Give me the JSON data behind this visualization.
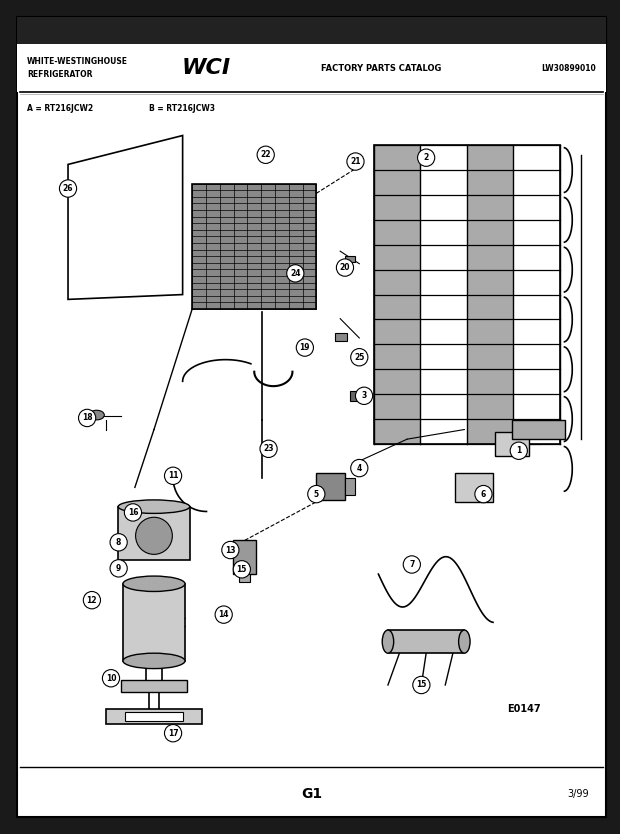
{
  "page_bg": "#1a1a1a",
  "content_bg": "#ffffff",
  "border_color": "#000000",
  "header": {
    "left_line1": "WHITE-WESTINGHOUSE",
    "left_line2": "REFRIGERATOR",
    "center_text": "FACTORY PARTS CATALOG",
    "right_text": "LW30899010"
  },
  "subtitle_a": "A = RT216JCW2",
  "subtitle_b": "B = RT216JCW3",
  "diagram_label": "E0147",
  "footer_left": "G1",
  "footer_right": "3/99"
}
